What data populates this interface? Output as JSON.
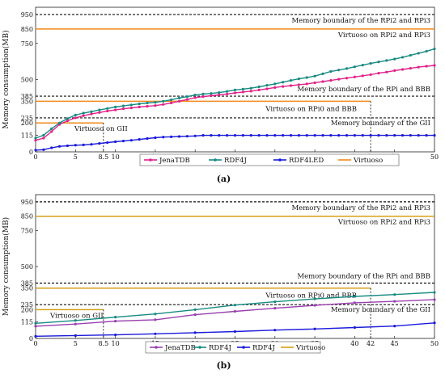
{
  "chart_data": [
    {
      "type": "line",
      "panel_label": "(a)",
      "ylabel": "Memory consumption(MB)",
      "xlabel": "",
      "xlim": [
        0,
        50
      ],
      "ylim": [
        0,
        1000
      ],
      "x_ticks": [
        0,
        5,
        8.5,
        10,
        15,
        20,
        25,
        30,
        35,
        40,
        42,
        45,
        50
      ],
      "x_tick_labels": [
        "0",
        "5",
        "8.5",
        "10",
        "15",
        "20",
        "25",
        "30",
        "35",
        "40",
        "42",
        "45",
        "50"
      ],
      "y_ticks": [
        0,
        115,
        200,
        235,
        350,
        385,
        500,
        750,
        850,
        950
      ],
      "y_tick_labels": [
        "0",
        "115",
        "200",
        "235",
        "350",
        "385",
        "500",
        "750",
        "850",
        "950"
      ],
      "grid": false,
      "legend_position": "bottom-left",
      "series": [
        {
          "name": "JenaTDB",
          "color": "#e0218a",
          "x": [
            0,
            1,
            2,
            3,
            4,
            5,
            6,
            7,
            8,
            9,
            10,
            11,
            12,
            13,
            14,
            15,
            16,
            17,
            18,
            19,
            20,
            21,
            22,
            23,
            24,
            25,
            26,
            27,
            28,
            29,
            30,
            31,
            32,
            33,
            34,
            35,
            36,
            37,
            38,
            39,
            40,
            41,
            42,
            43,
            44,
            45,
            46,
            47,
            48,
            49,
            50
          ],
          "y": [
            80,
            95,
            140,
            190,
            215,
            235,
            250,
            262,
            272,
            282,
            290,
            298,
            304,
            310,
            315,
            320,
            328,
            338,
            350,
            362,
            375,
            382,
            388,
            394,
            400,
            408,
            414,
            420,
            428,
            436,
            445,
            452,
            458,
            464,
            470,
            478,
            486,
            494,
            502,
            510,
            518,
            526,
            534,
            544,
            552,
            562,
            570,
            578,
            586,
            592,
            598
          ]
        },
        {
          "name": "RDF4J",
          "color": "#178a82",
          "x": [
            0,
            1,
            2,
            3,
            4,
            5,
            6,
            7,
            8,
            9,
            10,
            11,
            12,
            13,
            14,
            15,
            16,
            17,
            18,
            19,
            20,
            21,
            22,
            23,
            24,
            25,
            26,
            27,
            28,
            29,
            30,
            31,
            32,
            33,
            34,
            35,
            36,
            37,
            38,
            39,
            40,
            41,
            42,
            43,
            44,
            45,
            46,
            47,
            48,
            49,
            50
          ],
          "y": [
            95,
            115,
            160,
            200,
            230,
            255,
            268,
            278,
            290,
            300,
            310,
            318,
            325,
            332,
            338,
            342,
            350,
            360,
            372,
            382,
            393,
            400,
            404,
            410,
            418,
            428,
            434,
            440,
            450,
            460,
            470,
            482,
            494,
            505,
            514,
            524,
            540,
            556,
            566,
            576,
            588,
            600,
            612,
            622,
            632,
            642,
            654,
            668,
            682,
            696,
            712
          ]
        },
        {
          "name": "RDF4LED",
          "color": "#1a1adb",
          "x": [
            0,
            1,
            2,
            3,
            4,
            5,
            6,
            7,
            8,
            9,
            10,
            11,
            12,
            13,
            14,
            15,
            16,
            17,
            18,
            19,
            20,
            21,
            22,
            23,
            24,
            25,
            26,
            27,
            28,
            29,
            30,
            31,
            32,
            33,
            34,
            35,
            36,
            37,
            38,
            39,
            40,
            41,
            42,
            43,
            44,
            45,
            46,
            47,
            48,
            49,
            50
          ],
          "y": [
            12,
            15,
            28,
            38,
            42,
            46,
            48,
            52,
            58,
            64,
            70,
            75,
            80,
            86,
            92,
            98,
            102,
            104,
            106,
            108,
            110,
            114,
            114,
            114,
            114,
            114,
            114,
            114,
            114,
            114,
            114,
            114,
            114,
            114,
            114,
            114,
            114,
            114,
            114,
            114,
            114,
            114,
            114,
            114,
            114,
            114,
            114,
            114,
            114,
            114,
            114
          ]
        },
        {
          "name": "Virtuoso",
          "color": "#f08a1c",
          "x": [
            0,
            50
          ],
          "y": [
            850,
            850
          ]
        }
      ],
      "reference_lines": [
        {
          "y": 950,
          "label": "Memory boundary of the RPi2 and RPi3",
          "style": "dashed"
        },
        {
          "y": 850,
          "label": "Virtuoso on RPi2 and RPi3",
          "style": "solid"
        },
        {
          "y": 385,
          "label": "Memory boundary of the RPi and BBB",
          "style": "dashed"
        },
        {
          "y": 350,
          "x_end": 42,
          "label": "Virtuoso on RPi0 and BBB",
          "style": "solid"
        },
        {
          "y": 235,
          "label": "Memory boundary of the GII",
          "style": "dashed"
        },
        {
          "y": 200,
          "x_end": 8.5,
          "label": "Virtuoso on GII",
          "style": "solid"
        }
      ]
    },
    {
      "type": "line",
      "panel_label": "(b)",
      "ylabel": "Memory consumption(MB)",
      "xlabel": "",
      "xlim": [
        0,
        50
      ],
      "ylim": [
        0,
        1000
      ],
      "x_ticks": [
        0,
        5,
        8.5,
        10,
        15,
        20,
        25,
        30,
        35,
        40,
        42,
        45,
        50
      ],
      "x_tick_labels": [
        "0",
        "5",
        "8.5",
        "10",
        "15",
        "20",
        "25",
        "30",
        "35",
        "40",
        "42",
        "45",
        "50"
      ],
      "y_ticks": [
        0,
        115,
        200,
        235,
        350,
        385,
        500,
        750,
        850,
        950
      ],
      "y_tick_labels": [
        "0",
        "115",
        "200",
        "235",
        "350",
        "385",
        "500",
        "750",
        "850",
        "950"
      ],
      "grid": false,
      "legend_position": "bottom-left",
      "series": [
        {
          "name": "JenaTDB",
          "color": "#9a3fb0",
          "x": [
            0,
            5,
            10,
            15,
            20,
            25,
            30,
            35,
            40,
            45,
            50
          ],
          "y": [
            85,
            100,
            120,
            130,
            165,
            188,
            210,
            230,
            248,
            258,
            270
          ]
        },
        {
          "name": "RDF4J",
          "color": "#178a82",
          "x": [
            0,
            5,
            10,
            15,
            20,
            25,
            30,
            35,
            40,
            45,
            50
          ],
          "y": [
            105,
            125,
            148,
            170,
            200,
            232,
            255,
            275,
            292,
            305,
            320
          ]
        },
        {
          "name": "RDF4J",
          "color": "#1a1adb",
          "x": [
            0,
            5,
            10,
            15,
            20,
            25,
            30,
            35,
            40,
            45,
            50
          ],
          "y": [
            15,
            20,
            25,
            32,
            40,
            48,
            58,
            66,
            76,
            86,
            108
          ]
        },
        {
          "name": "Virtuoso",
          "color": "#d4a017",
          "x": [
            0,
            50
          ],
          "y": [
            850,
            850
          ]
        }
      ],
      "reference_lines": [
        {
          "y": 950,
          "label": "Memory boundary of the RPi2 and RPi3",
          "style": "dashed"
        },
        {
          "y": 850,
          "label": "Virtuoso on RPi2 and RPi3",
          "style": "solid"
        },
        {
          "y": 385,
          "label": "Memory boundary of the RPi and BBB",
          "style": "dashed"
        },
        {
          "y": 350,
          "x_end": 42,
          "label": "Virtuoso on RPi0 and BBB",
          "style": "solid"
        },
        {
          "y": 235,
          "label": "Memory boundary of the GII",
          "style": "dashed"
        },
        {
          "y": 200,
          "x_end": 8.5,
          "label": "Virtuoso on GII",
          "style": "solid"
        }
      ]
    }
  ]
}
